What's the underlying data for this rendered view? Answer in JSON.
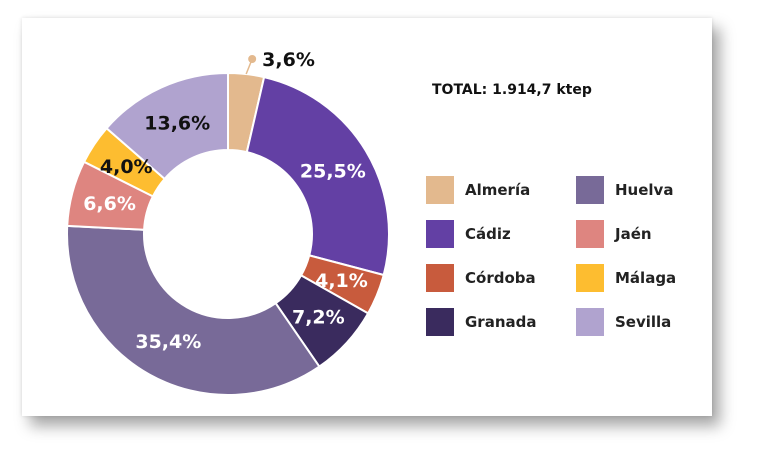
{
  "chart_data": {
    "type": "pie",
    "donut": true,
    "total_label": "TOTAL: 1.914,7 ktep",
    "slices": [
      {
        "name": "Almería",
        "value": 3.6,
        "label": "3,6%",
        "color": "#e3b98e",
        "label_color": "#111111"
      },
      {
        "name": "Cádiz",
        "value": 25.5,
        "label": "25,5%",
        "color": "#6340a4",
        "label_color": "#ffffff"
      },
      {
        "name": "Córdoba",
        "value": 4.1,
        "label": "4,1%",
        "color": "#c85b3d",
        "label_color": "#ffffff"
      },
      {
        "name": "Granada",
        "value": 7.2,
        "label": "7,2%",
        "color": "#3a2b5e",
        "label_color": "#ffffff"
      },
      {
        "name": "Huelva",
        "value": 35.4,
        "label": "35,4%",
        "color": "#786a98",
        "label_color": "#ffffff"
      },
      {
        "name": "Jaén",
        "value": 6.6,
        "label": "6,6%",
        "color": "#de8580",
        "label_color": "#ffffff"
      },
      {
        "name": "Málaga",
        "value": 4.0,
        "label": "4,0%",
        "color": "#fdbd30",
        "label_color": "#111111"
      },
      {
        "name": "Sevilla",
        "value": 13.6,
        "label": "13,6%",
        "color": "#b0a3cf",
        "label_color": "#111111"
      }
    ],
    "legend": {
      "columns": 2,
      "items": [
        "Almería",
        "Huelva",
        "Cádiz",
        "Jaén",
        "Córdoba",
        "Málaga",
        "Granada",
        "Sevilla"
      ]
    }
  }
}
